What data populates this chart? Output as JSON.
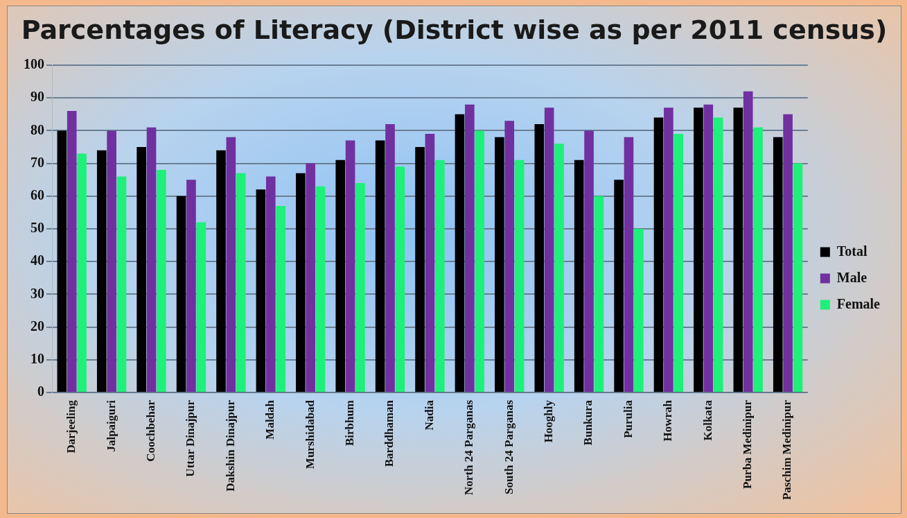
{
  "chart_data": {
    "type": "bar",
    "title": "Parcentages of Literacy (District wise as per 2011 census)",
    "categories": [
      "Darjeeling",
      "Jalpaiguri",
      "Coochbehar",
      "Uttar Dinajpur",
      "Dakshin Dinajpur",
      "Maldah",
      "Murshidabad",
      "Birbhum",
      "Barddhaman",
      "Nadia",
      "North 24 Parganas",
      "South 24 Parganas",
      "Hooghly",
      "Bunkura",
      "Purulia",
      "Howrah",
      "Kolkata",
      "Purba Medinipur",
      "Paschim Medinipur"
    ],
    "series": [
      {
        "name": "Total",
        "color": "#000000",
        "values": [
          80,
          74,
          75,
          60,
          74,
          62,
          67,
          71,
          77,
          75,
          85,
          78,
          82,
          71,
          65,
          84,
          87,
          87,
          78
        ]
      },
      {
        "name": "Male",
        "color": "#7030a0",
        "values": [
          86,
          80,
          81,
          65,
          78,
          66,
          70,
          77,
          82,
          79,
          88,
          83,
          87,
          80,
          78,
          87,
          88,
          92,
          85
        ]
      },
      {
        "name": "Female",
        "color": "#1ef07a",
        "values": [
          73,
          66,
          68,
          52,
          67,
          57,
          63,
          64,
          69,
          71,
          80,
          71,
          76,
          60,
          50,
          79,
          84,
          81,
          70
        ]
      }
    ],
    "ylim": [
      0,
      100
    ],
    "yticks": [
      0,
      10,
      20,
      30,
      40,
      50,
      60,
      70,
      80,
      90,
      100
    ],
    "grid": "y",
    "legend": "right"
  }
}
